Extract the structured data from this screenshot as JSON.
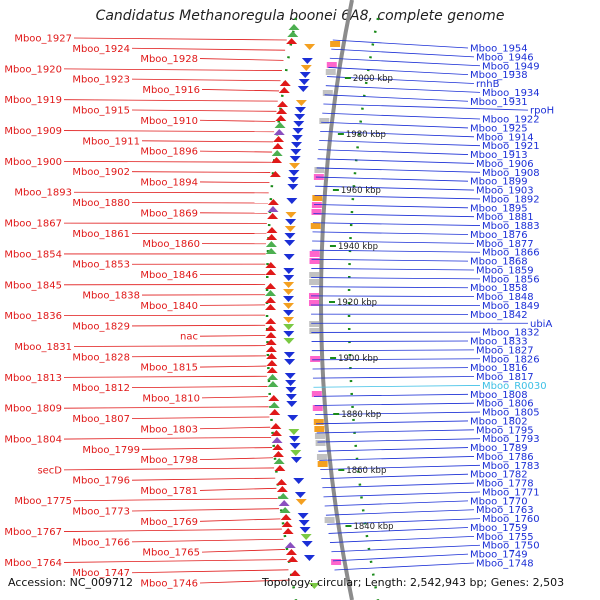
{
  "title": "Candidatus Methanoregula boonei 6A8, complete genome",
  "accession": "Accession: NC_009712",
  "topology": "Topology: circular; Length: 2,542,943 bp; Genes: 2,503",
  "colors": {
    "left_label": "#e01919",
    "right_label": "#1b2fd6",
    "rna_label": "#3ec0e6",
    "backbone": "#8c8c8c",
    "tick": "#1a8a1a"
  },
  "kbp_marks": [
    "2000 kbp",
    "1980 kbp",
    "1960 kbp",
    "1940 kbp",
    "1920 kbp",
    "1900 kbp",
    "1880 kbp",
    "1860 kbp",
    "1840 kbp"
  ],
  "left_labels": [
    "Mboo_1927",
    "Mboo_1924",
    "Mboo_1928",
    "Mboo_1920",
    "Mboo_1923",
    "Mboo_1916",
    "Mboo_1919",
    "Mboo_1915",
    "Mboo_1910",
    "Mboo_1909",
    "Mboo_1911",
    "Mboo_1896",
    "Mboo_1900",
    "Mboo_1902",
    "Mboo_1894",
    "Mboo_1893",
    "Mboo_1880",
    "Mboo_1869",
    "Mboo_1867",
    "Mboo_1861",
    "Mboo_1860",
    "Mboo_1854",
    "Mboo_1853",
    "Mboo_1846",
    "Mboo_1845",
    "Mboo_1838",
    "Mboo_1840",
    "Mboo_1836",
    "Mboo_1829",
    "nac",
    "Mboo_1831",
    "Mboo_1828",
    "Mboo_1815",
    "Mboo_1813",
    "Mboo_1812",
    "Mboo_1810",
    "Mboo_1809",
    "Mboo_1807",
    "Mboo_1803",
    "Mboo_1804",
    "Mboo_1799",
    "Mboo_1798",
    "secD",
    "Mboo_1796",
    "Mboo_1781",
    "Mboo_1775",
    "Mboo_1773",
    "Mboo_1769",
    "Mboo_1767",
    "Mboo_1766",
    "Mboo_1765",
    "Mboo_1764",
    "Mboo_1747",
    "Mboo_1746"
  ],
  "right_labels": [
    "Mboo_1954",
    "Mboo_1946",
    "Mboo_1949",
    "Mboo_1938",
    "rnhB",
    "Mboo_1934",
    "Mboo_1931",
    "rpoH",
    "Mboo_1922",
    "Mboo_1925",
    "Mboo_1914",
    "Mboo_1921",
    "Mboo_1913",
    "Mboo_1906",
    "Mboo_1908",
    "Mboo_1899",
    "Mboo_1903",
    "Mboo_1892",
    "Mboo_1895",
    "Mboo_1881",
    "Mboo_1883",
    "Mboo_1876",
    "Mboo_1877",
    "Mboo_1866",
    "Mboo_1868",
    "Mboo_1859",
    "Mboo_1856",
    "Mboo_1858",
    "Mboo_1848",
    "Mboo_1849",
    "Mboo_1842",
    "ubiA",
    "Mboo_1832",
    "Mboo_1833",
    "Mboo_1827",
    "Mboo_1826",
    "Mboo_1816",
    "Mboo_1817",
    "Mboo_R0030",
    "Mboo_1808",
    "Mboo_1806",
    "Mboo_1805",
    "Mboo_1802",
    "Mboo_1795",
    "Mboo_1793",
    "Mboo_1789",
    "Mboo_1786",
    "Mboo_1783",
    "Mboo_1782",
    "Mboo_1778",
    "Mboo_1771",
    "Mboo_1770",
    "Mboo_1763",
    "Mboo_1760",
    "Mboo_1759",
    "Mboo_1755",
    "Mboo_1750",
    "Mboo_1749",
    "Mboo_1748"
  ]
}
